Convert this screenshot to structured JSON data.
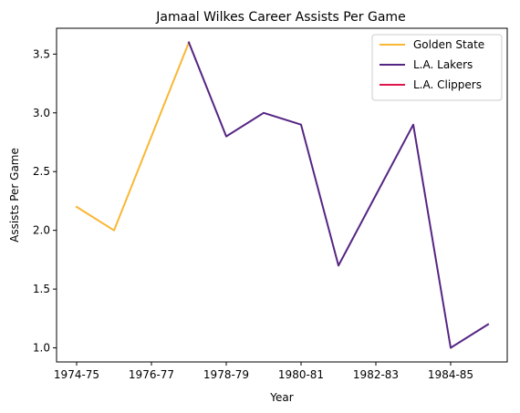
{
  "chart_data": {
    "type": "line",
    "title": "Jamaal Wilkes Career Assists Per Game",
    "xlabel": "Year",
    "ylabel": "Assists Per Game",
    "x": [
      "1974-75",
      "1975-76",
      "1976-77",
      "1977-78",
      "1978-79",
      "1979-80",
      "1980-81",
      "1981-82",
      "1982-83",
      "1983-84",
      "1984-85",
      "1985-86"
    ],
    "xticks": [
      "1974-75",
      "1976-77",
      "1978-79",
      "1980-81",
      "1982-83",
      "1984-85"
    ],
    "ylim": [
      0.88,
      3.72
    ],
    "yticks": [
      1.0,
      1.5,
      2.0,
      2.5,
      3.0,
      3.5
    ],
    "grid": false,
    "legend_position": "top-right",
    "series": [
      {
        "name": "Golden State",
        "color": "#f9b734",
        "x": [
          "1974-75",
          "1975-76",
          "1976-77",
          "1977-78"
        ],
        "values": [
          2.2,
          2.0,
          2.8,
          3.6
        ]
      },
      {
        "name": "L.A. Lakers",
        "color": "#552583",
        "x": [
          "1977-78",
          "1978-79",
          "1979-80",
          "1980-81",
          "1981-82",
          "1982-83",
          "1983-84",
          "1984-85",
          "1985-86"
        ],
        "values": [
          3.6,
          2.8,
          3.0,
          2.9,
          1.7,
          2.3,
          2.9,
          1.0,
          1.2
        ]
      },
      {
        "name": "L.A. Clippers",
        "color": "#e0154d",
        "x": [],
        "values": []
      }
    ]
  }
}
